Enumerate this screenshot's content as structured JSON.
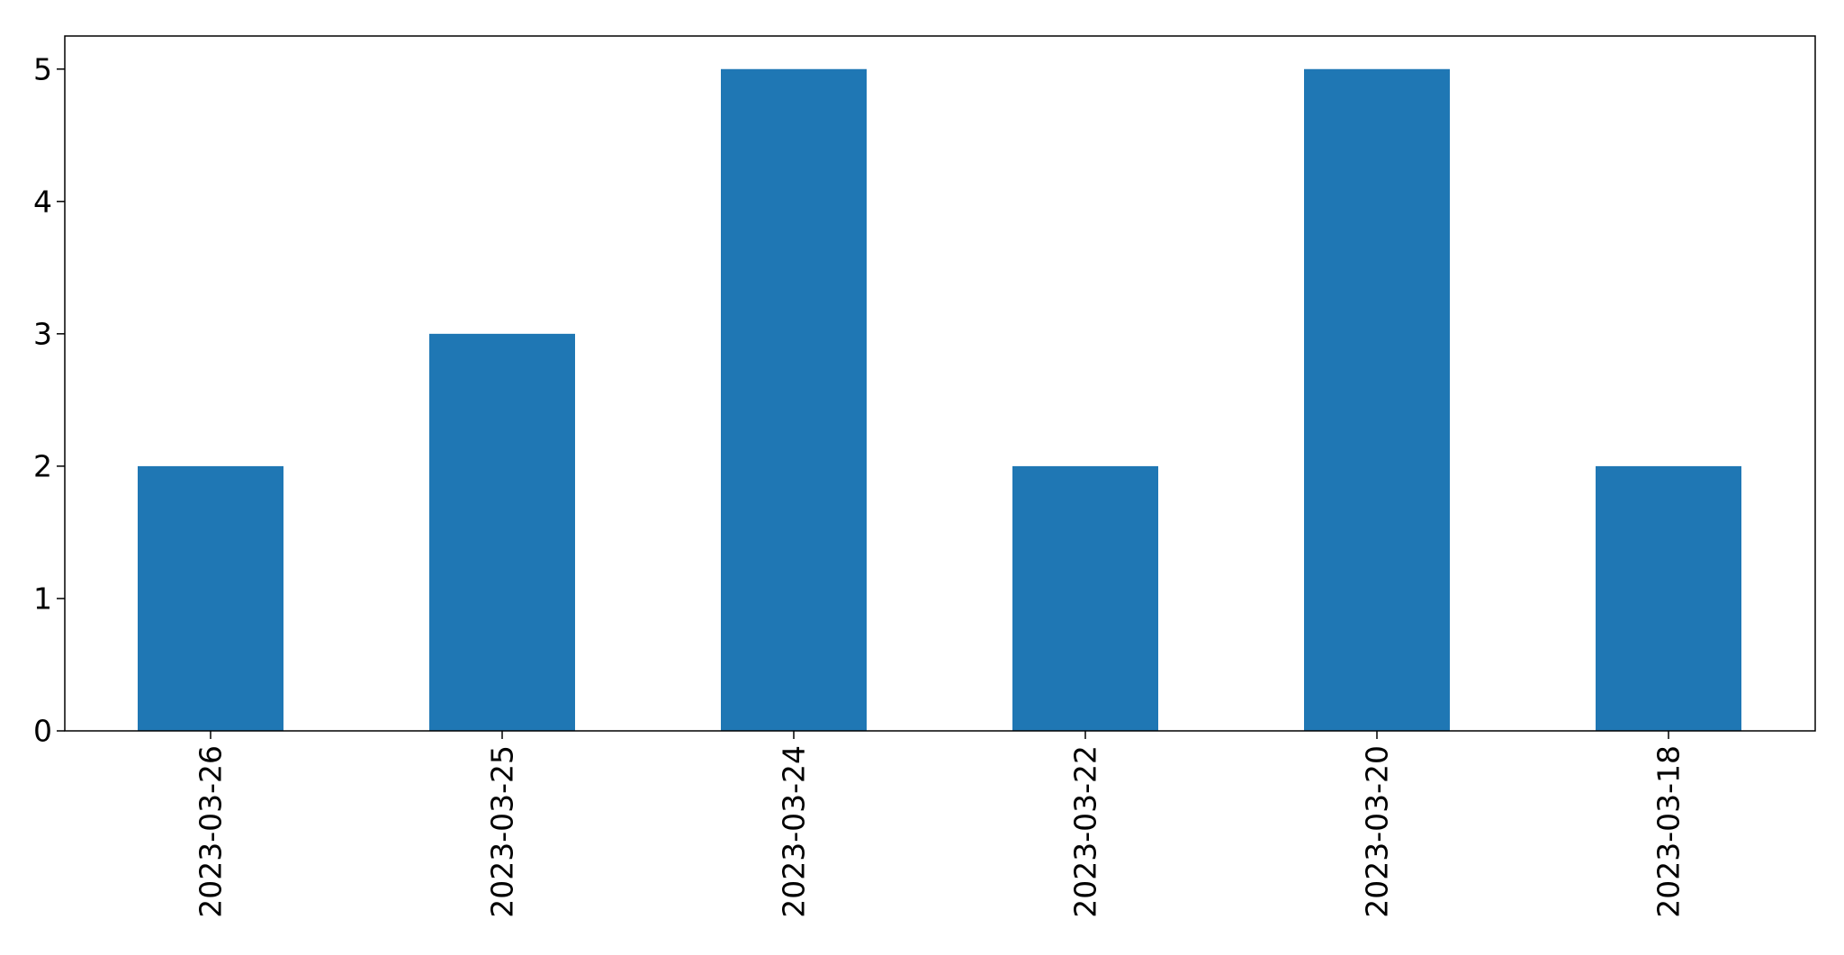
{
  "chart_data": {
    "type": "bar",
    "title": "",
    "xlabel": "",
    "ylabel": "",
    "categories": [
      "2023-03-26",
      "2023-03-25",
      "2023-03-24",
      "2023-03-22",
      "2023-03-20",
      "2023-03-18"
    ],
    "values": [
      2,
      3,
      5,
      2,
      5,
      2
    ],
    "ylim": [
      0,
      5.25
    ],
    "yticks": [
      "0",
      "1",
      "2",
      "3",
      "4",
      "5"
    ],
    "grid": false,
    "legend": "none",
    "bar_color": "#1f77b4"
  }
}
